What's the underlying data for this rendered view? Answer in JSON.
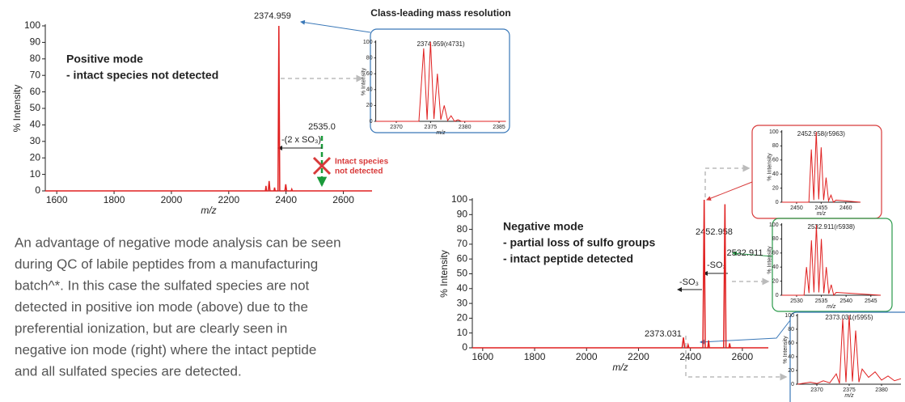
{
  "title": "Class-leading mass resolution",
  "paragraph": [
    "An advantage of negative mode analysis can be seen",
    "during QC of labile peptides from a manufacturing",
    "batch^*. In this case the sulfated species are not",
    "detected in positive ion mode (above) due to the",
    "preferential ionization, but are clearly seen in",
    "negative ion mode (right) where the intact peptide",
    "and all sulfated species are detected."
  ],
  "chart_data": [
    {
      "type": "line",
      "xlabel": "m/z",
      "ylabel": "% Intensity",
      "color": "#e02020",
      "xlim": [
        1560,
        2700
      ],
      "ylim": [
        0,
        100
      ],
      "xticks": [
        1600,
        1800,
        2000,
        2200,
        2400,
        2600
      ],
      "yticks": [
        0,
        10,
        20,
        30,
        40,
        50,
        60,
        70,
        80,
        90,
        100
      ],
      "x": [
        1560,
        2328,
        2330,
        2332,
        2338,
        2341,
        2344,
        2358,
        2360,
        2362,
        2372,
        2374.959,
        2378,
        2396,
        2399,
        2402,
        2418,
        2420,
        2422,
        2700
      ],
      "values": [
        0,
        0,
        3,
        0,
        0,
        6,
        0,
        0,
        2,
        0,
        0,
        100,
        0,
        0,
        4,
        0,
        0,
        1,
        0,
        0
      ],
      "annotations": [
        "2374.959",
        "Positive mode",
        "- intact species not detected",
        "-(2 x SO₃)",
        "2535.0",
        "Intact species",
        "not detected"
      ]
    },
    {
      "type": "line",
      "label": "2374.959(r4731)",
      "xlabel": "m/z",
      "ylabel": "% Intensity",
      "color": "#e02020",
      "xlim": [
        2367,
        2386
      ],
      "ylim": [
        0,
        100
      ],
      "xticks": [
        2370,
        2375,
        2380,
        2385
      ],
      "yticks": [
        0,
        20,
        40,
        60,
        80,
        100
      ],
      "x": [
        2367,
        2373.3,
        2374,
        2374.5,
        2375,
        2375.5,
        2376,
        2376.5,
        2377,
        2377.5,
        2378,
        2378.5,
        2379,
        2379.5,
        2386
      ],
      "values": [
        0,
        0,
        92,
        2,
        100,
        3,
        60,
        2,
        20,
        1,
        7,
        0,
        2,
        0,
        0
      ]
    },
    {
      "type": "line",
      "xlabel": "m/z",
      "ylabel": "% Intensity",
      "color": "#e02020",
      "xlim": [
        1560,
        2700
      ],
      "ylim": [
        0,
        100
      ],
      "xticks": [
        1600,
        1800,
        2000,
        2200,
        2400,
        2600
      ],
      "yticks": [
        0,
        10,
        20,
        30,
        40,
        50,
        60,
        70,
        80,
        90,
        100
      ],
      "x": [
        1560,
        2368,
        2373.031,
        2378,
        2388,
        2391,
        2394,
        2448,
        2452.958,
        2457,
        2467,
        2470,
        2473,
        2528,
        2532.911,
        2537,
        2548,
        2551,
        2554,
        2700
      ],
      "values": [
        0,
        0,
        7,
        0,
        0,
        2,
        0,
        0,
        100,
        0,
        0,
        5,
        0,
        0,
        97,
        0,
        0,
        3,
        0,
        0
      ],
      "annotations": [
        "2452.958",
        "2532.911",
        "2373.031",
        "-SO₃",
        "-SO₃",
        "Negative mode",
        "- partial loss of sulfo groups",
        "- intact peptide detected"
      ]
    },
    {
      "type": "line",
      "label": "2452.958(r5963)",
      "xlabel": "m/z",
      "ylabel": "% Intensity",
      "color": "#e02020",
      "xlim": [
        2447,
        2463
      ],
      "ylim": [
        0,
        100
      ],
      "xticks": [
        2450,
        2455,
        2460
      ],
      "yticks": [
        0,
        20,
        40,
        60,
        80,
        100
      ],
      "x": [
        2447,
        2452.5,
        2453,
        2453.5,
        2454,
        2454.5,
        2455,
        2455.5,
        2456,
        2456.5,
        2457,
        2457.5,
        2458,
        2463
      ],
      "values": [
        0,
        0,
        75,
        3,
        100,
        4,
        78,
        3,
        35,
        2,
        10,
        0,
        3,
        0
      ]
    },
    {
      "type": "line",
      "label": "2532.911(r5938)",
      "xlabel": "m/z",
      "ylabel": "% Intensity",
      "color": "#e02020",
      "xlim": [
        2527,
        2547
      ],
      "ylim": [
        0,
        100
      ],
      "xticks": [
        2530,
        2535,
        2540,
        2545
      ],
      "yticks": [
        0,
        20,
        40,
        60,
        80,
        100
      ],
      "x": [
        2527,
        2531.5,
        2532,
        2532.5,
        2533,
        2533.5,
        2534,
        2534.5,
        2535,
        2535.5,
        2536,
        2536.5,
        2537,
        2537.5,
        2538,
        2547
      ],
      "values": [
        0,
        0,
        40,
        3,
        78,
        4,
        100,
        4,
        80,
        3,
        40,
        2,
        15,
        0,
        4,
        0
      ]
    },
    {
      "type": "line",
      "label": "2373.031(r5955)",
      "xlabel": "m/z",
      "ylabel": "% Intensity",
      "color": "#e02020",
      "xlim": [
        2367,
        2383
      ],
      "ylim": [
        0,
        100
      ],
      "xticks": [
        2370,
        2375,
        2380
      ],
      "yticks": [
        0,
        20,
        40,
        60,
        80,
        100
      ],
      "x": [
        2367,
        2369,
        2370,
        2371,
        2372,
        2373,
        2373.5,
        2374,
        2374.5,
        2375,
        2375.5,
        2376,
        2376.5,
        2377,
        2378,
        2379,
        2380,
        2381,
        2382,
        2383
      ],
      "values": [
        0,
        3,
        1,
        5,
        2,
        15,
        1,
        95,
        3,
        100,
        4,
        78,
        3,
        22,
        10,
        18,
        6,
        12,
        5,
        8
      ]
    }
  ]
}
